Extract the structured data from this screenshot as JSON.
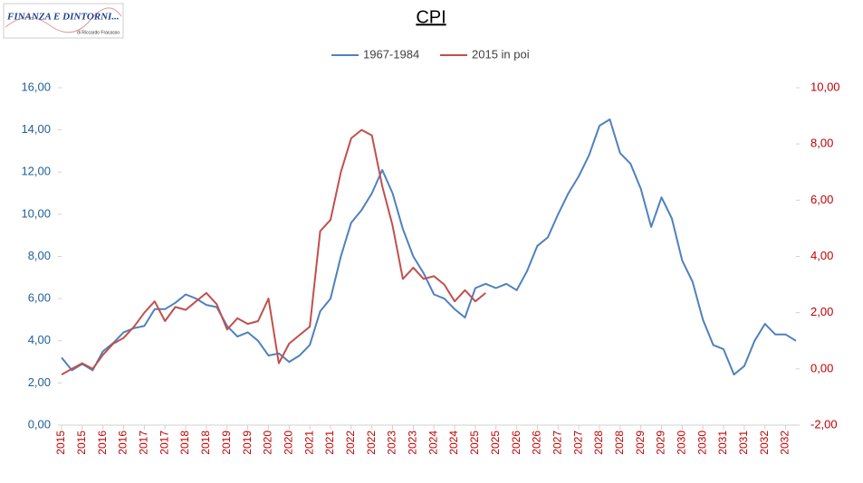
{
  "logo": {
    "title": "FINANZA E DINTORNI...",
    "author": "di Riccardo Fracasso"
  },
  "chart_data": {
    "type": "line",
    "title": "CPI",
    "categories": [
      "2015",
      null,
      "2015",
      null,
      "2016",
      null,
      "2016",
      null,
      "2017",
      null,
      "2017",
      null,
      "2018",
      null,
      "2018",
      null,
      "2019",
      null,
      "2019",
      null,
      "2020",
      null,
      "2020",
      null,
      "2021",
      null,
      "2021",
      null,
      "2022",
      null,
      "2022",
      null,
      "2023",
      null,
      "2023",
      null,
      "2024",
      null,
      "2024",
      null,
      "2025",
      null,
      "2025",
      null,
      "2026",
      null,
      "2026",
      null,
      "2027",
      null,
      "2027",
      null,
      "2028",
      null,
      "2028",
      null,
      "2029",
      null,
      "2029",
      null,
      "2030",
      null,
      "2030",
      null,
      "2031",
      null,
      "2031",
      null,
      "2032",
      null,
      "2032",
      null
    ],
    "series": [
      {
        "name": "1967-1984",
        "color": "#4f81bd",
        "axis": "y",
        "values": [
          3.2,
          2.6,
          2.9,
          2.6,
          3.5,
          3.9,
          4.4,
          4.6,
          4.7,
          5.5,
          5.5,
          5.8,
          6.2,
          6.0,
          5.7,
          5.6,
          4.7,
          4.2,
          4.4,
          4.0,
          3.3,
          3.4,
          3.0,
          3.3,
          3.8,
          5.4,
          6.0,
          8.0,
          9.6,
          10.2,
          11.0,
          12.1,
          11.0,
          9.3,
          8.0,
          7.2,
          6.2,
          6.0,
          5.5,
          5.1,
          6.5,
          6.7,
          6.5,
          6.7,
          6.4,
          7.3,
          8.5,
          8.9,
          10.0,
          11.0,
          11.8,
          12.8,
          14.2,
          14.5,
          12.9,
          12.4,
          11.2,
          9.4,
          10.8,
          9.8,
          7.8,
          6.8,
          5.0,
          3.8,
          3.6,
          2.4,
          2.8,
          4.0,
          4.8,
          4.3,
          4.3,
          4.0
        ]
      },
      {
        "name": "2015 in poi",
        "color": "#c0504d",
        "axis": "y2",
        "values": [
          -0.2,
          0.0,
          0.2,
          0.0,
          0.5,
          0.9,
          1.1,
          1.5,
          2.0,
          2.4,
          1.7,
          2.2,
          2.1,
          2.4,
          2.7,
          2.3,
          1.4,
          1.8,
          1.6,
          1.7,
          2.5,
          0.2,
          0.9,
          1.2,
          1.5,
          4.9,
          5.3,
          7.0,
          8.2,
          8.5,
          8.3,
          6.5,
          5.1,
          3.2,
          3.6,
          3.2,
          3.3,
          3.0,
          2.4,
          2.8,
          2.4,
          2.7,
          null,
          null,
          null,
          null,
          null,
          null,
          null,
          null,
          null,
          null,
          null,
          null,
          null,
          null,
          null,
          null,
          null,
          null,
          null,
          null,
          null,
          null,
          null,
          null,
          null,
          null,
          null,
          null,
          null,
          null
        ]
      }
    ],
    "ylim": [
      0,
      16
    ],
    "yticks": [
      {
        "value": 0,
        "label": "0,00"
      },
      {
        "value": 2,
        "label": "2,00"
      },
      {
        "value": 4,
        "label": "4,00"
      },
      {
        "value": 6,
        "label": "6,00"
      },
      {
        "value": 8,
        "label": "8,00"
      },
      {
        "value": 10,
        "label": "10,00"
      },
      {
        "value": 12,
        "label": "12,00"
      },
      {
        "value": 14,
        "label": "14,00"
      },
      {
        "value": 16,
        "label": "16,00"
      }
    ],
    "y2lim": [
      -2,
      10
    ],
    "y2ticks": [
      {
        "value": -2,
        "label": "-2,00"
      },
      {
        "value": 0,
        "label": "0,00"
      },
      {
        "value": 2,
        "label": "2,00"
      },
      {
        "value": 4,
        "label": "4,00"
      },
      {
        "value": 6,
        "label": "6,00"
      },
      {
        "value": 8,
        "label": "8,00"
      },
      {
        "value": 10,
        "label": "10,00"
      }
    ],
    "legend": "top"
  }
}
